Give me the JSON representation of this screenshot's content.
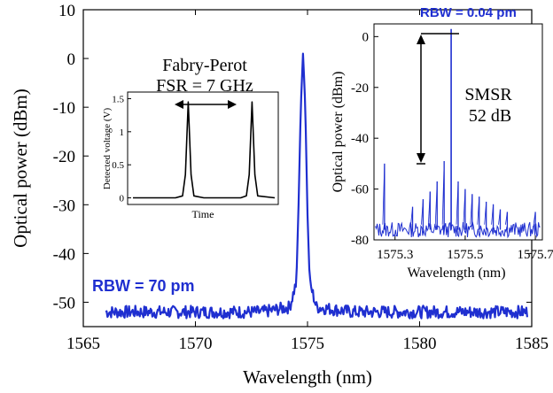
{
  "chart_data": [
    {
      "type": "line",
      "xlabel": "Wavelength (nm)",
      "ylabel": "Optical power (dBm)",
      "xlim": [
        1565,
        1585
      ],
      "ylim": [
        -55,
        10
      ],
      "xticks": [
        "1565",
        "1570",
        "1575",
        "1580",
        "1585"
      ],
      "yticks": [
        "10",
        "0",
        "-10",
        "-20",
        "-30",
        "-40",
        "-50"
      ],
      "x_ticks_values": [
        1565,
        1570,
        1575,
        1580,
        1585
      ],
      "y_ticks_values": [
        10,
        0,
        -10,
        -20,
        -30,
        -40,
        -50
      ],
      "annotation": "RBW = 70 pm",
      "series": [
        {
          "color": "#1f2fd0",
          "x": [
            1565.0,
            1567.0,
            1569.0,
            1571.0,
            1573.0,
            1574.2,
            1574.5,
            1574.6,
            1574.7,
            1574.8,
            1574.9,
            1575.0,
            1575.1,
            1575.4,
            1577.0,
            1579.0,
            1581.0,
            1583.0,
            1585.0
          ],
          "y": [
            -52,
            -52,
            -52,
            -52,
            -52,
            -51,
            -46,
            -30,
            -10,
            1,
            -10,
            -32,
            -46,
            -51,
            -52,
            -52,
            -52,
            -52,
            -52
          ]
        }
      ]
    },
    {
      "type": "line",
      "title_lines": [
        "Fabry-Perot",
        "FSR = 7 GHz"
      ],
      "xlabel": "Time",
      "ylabel": "Detected voltage (V)",
      "ylim": [
        -0.1,
        1.6
      ],
      "yticks": [
        "0",
        "0.5",
        "1",
        "1.5"
      ],
      "y_ticks_values": [
        0,
        0.5,
        1,
        1.5
      ],
      "series": [
        {
          "color": "#000000",
          "x": [
            0,
            0.3,
            0.35,
            0.37,
            0.39,
            0.41,
            0.43,
            0.5,
            0.76,
            0.8,
            0.82,
            0.84,
            0.86,
            0.88,
            1.0
          ],
          "y": [
            0,
            0,
            0.03,
            0.35,
            1.45,
            0.35,
            0.03,
            0,
            0,
            0.03,
            0.35,
            1.45,
            0.35,
            0.03,
            0
          ]
        }
      ]
    },
    {
      "type": "line",
      "annotation": "RBW = 0.04 pm",
      "smsr_label_lines": [
        "SMSR",
        "52 dB"
      ],
      "xlabel": "Wavelength (nm)",
      "ylabel": "Optical power (dBm)",
      "xlim": [
        1575.24,
        1575.72
      ],
      "ylim": [
        -80,
        5
      ],
      "xticks": [
        "1575.3",
        "1575.5",
        "1575.7"
      ],
      "yticks": [
        "0",
        "-20",
        "-40",
        "-60",
        "-80"
      ],
      "x_ticks_values": [
        1575.3,
        1575.5,
        1575.7
      ],
      "y_ticks_values": [
        0,
        -20,
        -40,
        -60,
        -80
      ],
      "series": [
        {
          "color": "#1f2fd0",
          "noise_floor": -76,
          "main_peak": {
            "x": 1575.46,
            "y": 3
          },
          "side_peaks": [
            {
              "x": 1575.27,
              "y": -50
            },
            {
              "x": 1575.35,
              "y": -67
            },
            {
              "x": 1575.38,
              "y": -64
            },
            {
              "x": 1575.4,
              "y": -61
            },
            {
              "x": 1575.42,
              "y": -57
            },
            {
              "x": 1575.44,
              "y": -49
            },
            {
              "x": 1575.48,
              "y": -57
            },
            {
              "x": 1575.5,
              "y": -60
            },
            {
              "x": 1575.52,
              "y": -62
            },
            {
              "x": 1575.54,
              "y": -63
            },
            {
              "x": 1575.56,
              "y": -65
            },
            {
              "x": 1575.58,
              "y": -66
            },
            {
              "x": 1575.6,
              "y": -68
            },
            {
              "x": 1575.62,
              "y": -69
            },
            {
              "x": 1575.7,
              "y": -69
            }
          ]
        }
      ]
    }
  ]
}
